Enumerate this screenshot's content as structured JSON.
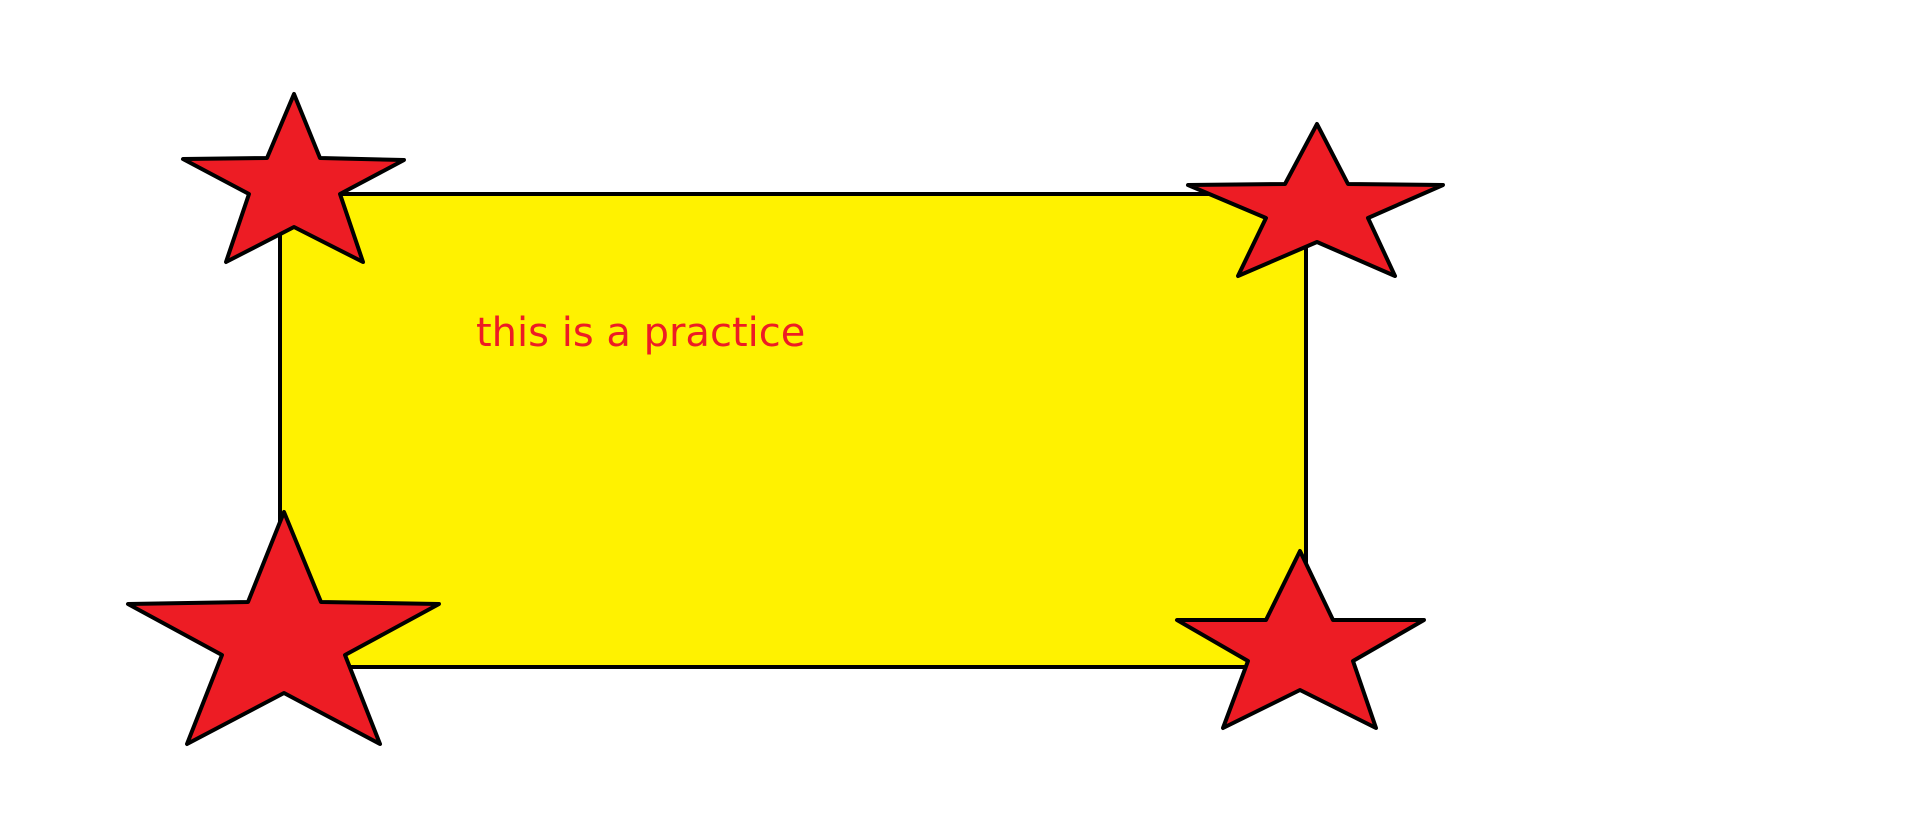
{
  "caption": "this is a practice",
  "colors": {
    "background": "#ffffff",
    "rectangle_fill": "#fff200",
    "star_fill": "#ed1c24",
    "outline": "#000000",
    "caption_text": "#ed1c24"
  },
  "shapes": {
    "rectangle": "yellow-rectangle",
    "stars": [
      "top-left-star",
      "top-right-star",
      "bottom-left-star",
      "bottom-right-star"
    ]
  }
}
